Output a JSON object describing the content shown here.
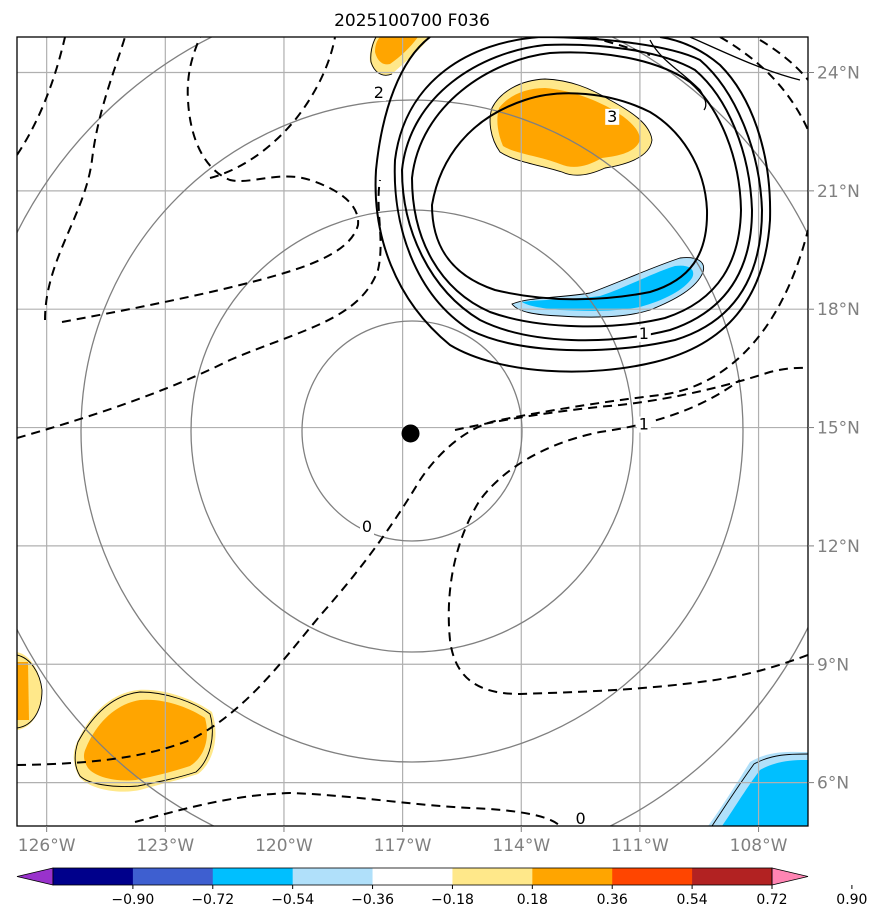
{
  "chart_data": {
    "type": "contour-map",
    "title": "2025100700 F036",
    "x_ticks": [
      {
        "value": -126,
        "label": "126°W"
      },
      {
        "value": -123,
        "label": "123°W"
      },
      {
        "value": -120,
        "label": "120°W"
      },
      {
        "value": -117,
        "label": "117°W"
      },
      {
        "value": -114,
        "label": "114°W"
      },
      {
        "value": -111,
        "label": "111°W"
      },
      {
        "value": -108,
        "label": "108°W"
      }
    ],
    "y_ticks": [
      {
        "value": 6,
        "label": "6°N"
      },
      {
        "value": 9,
        "label": "9°N"
      },
      {
        "value": 12,
        "label": "12°N"
      },
      {
        "value": 15,
        "label": "15°N"
      },
      {
        "value": 18,
        "label": "18°N"
      },
      {
        "value": 21,
        "label": "21°N"
      },
      {
        "value": 24,
        "label": "24°N"
      }
    ],
    "xlim": [
      -126.75,
      -106.75
    ],
    "ylim": [
      4.9,
      24.9
    ],
    "grid": true,
    "center_marker": {
      "lon": -116.8,
      "lat": 14.85
    },
    "range_rings": 4,
    "colorbar": {
      "ticks": [
        "−0.90",
        "−0.72",
        "−0.54",
        "−0.36",
        "−0.18",
        "0.18",
        "0.36",
        "0.54",
        "0.72",
        "0.90"
      ],
      "colors": [
        "#9932cc",
        "#00008b",
        "#3e5fd0",
        "#00bfff",
        "#b0e0fa",
        "#ffffff",
        "#ffe88a",
        "#ffa500",
        "#ff4500",
        "#b22222",
        "#ff85b3"
      ],
      "extend": "both"
    },
    "contour_labels": [
      {
        "text": "2",
        "lon": -117.6,
        "lat": 23.4
      },
      {
        "text": "3",
        "lon": -111.7,
        "lat": 22.8
      },
      {
        "text": "1",
        "lon": -110.9,
        "lat": 17.3
      },
      {
        "text": "1",
        "lon": -110.9,
        "lat": 15.0
      },
      {
        "text": "0",
        "lon": -117.9,
        "lat": 12.4
      },
      {
        "text": "0",
        "lon": -112.5,
        "lat": 5.0
      }
    ]
  }
}
